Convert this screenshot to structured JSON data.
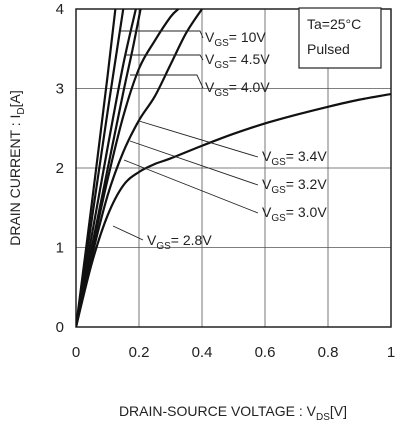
{
  "chart_data": {
    "type": "line",
    "xlabel": "DRAIN-SOURCE VOLTAGE : V",
    "xlabel_sub": "DS",
    "xlabel_unit": "[V]",
    "ylabel": "DRAIN CURRENT : I",
    "ylabel_sub": "D",
    "ylabel_unit": "[A]",
    "xlim": [
      0,
      1
    ],
    "ylim": [
      0,
      4
    ],
    "x_ticks": [
      "0",
      "0.2",
      "0.4",
      "0.6",
      "0.8",
      "1"
    ],
    "x_tick_values": [
      0,
      0.2,
      0.4,
      0.6,
      0.8,
      1
    ],
    "y_ticks": [
      "0",
      "1",
      "2",
      "3",
      "4"
    ],
    "y_tick_values": [
      0,
      1,
      2,
      3,
      4
    ],
    "grid": true,
    "conditions": [
      "Ta=25°C",
      "Pulsed"
    ],
    "series": [
      {
        "name": "VGS= 10V",
        "label_main": "V",
        "label_sub": "GS",
        "label_rest": "= 10V",
        "x": [
          0,
          0.05,
          0.1,
          0.125
        ],
        "y": [
          0,
          1.55,
          3.15,
          4.0
        ]
      },
      {
        "name": "VGS= 4.5V",
        "label_main": "V",
        "label_sub": "GS",
        "label_rest": "= 4.5V",
        "x": [
          0,
          0.05,
          0.1,
          0.15
        ],
        "y": [
          0,
          1.35,
          2.7,
          4.0
        ]
      },
      {
        "name": "VGS= 4.0V",
        "label_main": "V",
        "label_sub": "GS",
        "label_rest": "= 4.0V",
        "x": [
          0,
          0.05,
          0.1,
          0.15,
          0.19
        ],
        "y": [
          0,
          1.15,
          2.25,
          3.3,
          4.0
        ]
      },
      {
        "name": "VGS= 3.4V",
        "label_main": "V",
        "label_sub": "GS",
        "label_rest": "= 3.4V",
        "x": [
          0,
          0.05,
          0.1,
          0.15,
          0.18,
          0.205
        ],
        "y": [
          0,
          1.0,
          1.98,
          2.95,
          3.5,
          4.0
        ]
      },
      {
        "name": "VGS= 3.2V",
        "label_main": "V",
        "label_sub": "GS",
        "label_rest": "= 3.2V",
        "x": [
          0,
          0.05,
          0.1,
          0.15,
          0.2,
          0.25,
          0.3,
          0.325
        ],
        "y": [
          0,
          0.95,
          1.85,
          2.65,
          3.25,
          3.6,
          3.9,
          4.0
        ]
      },
      {
        "name": "VGS= 3.0V",
        "label_main": "V",
        "label_sub": "GS",
        "label_rest": "= 3.0V",
        "x": [
          0,
          0.05,
          0.1,
          0.15,
          0.2,
          0.25,
          0.3,
          0.35,
          0.4
        ],
        "y": [
          0,
          0.88,
          1.65,
          2.2,
          2.6,
          2.9,
          3.3,
          3.7,
          4.0
        ]
      },
      {
        "name": "VGS= 2.8V",
        "label_main": "V",
        "label_sub": "GS",
        "label_rest": "= 2.8V",
        "x": [
          0,
          0.05,
          0.1,
          0.15,
          0.2,
          0.25,
          0.3,
          0.4,
          0.5,
          0.6,
          0.7,
          0.8,
          0.9,
          1.0
        ],
        "y": [
          0,
          0.8,
          1.4,
          1.78,
          1.95,
          2.05,
          2.12,
          2.28,
          2.43,
          2.56,
          2.67,
          2.77,
          2.86,
          2.93
        ]
      }
    ]
  }
}
